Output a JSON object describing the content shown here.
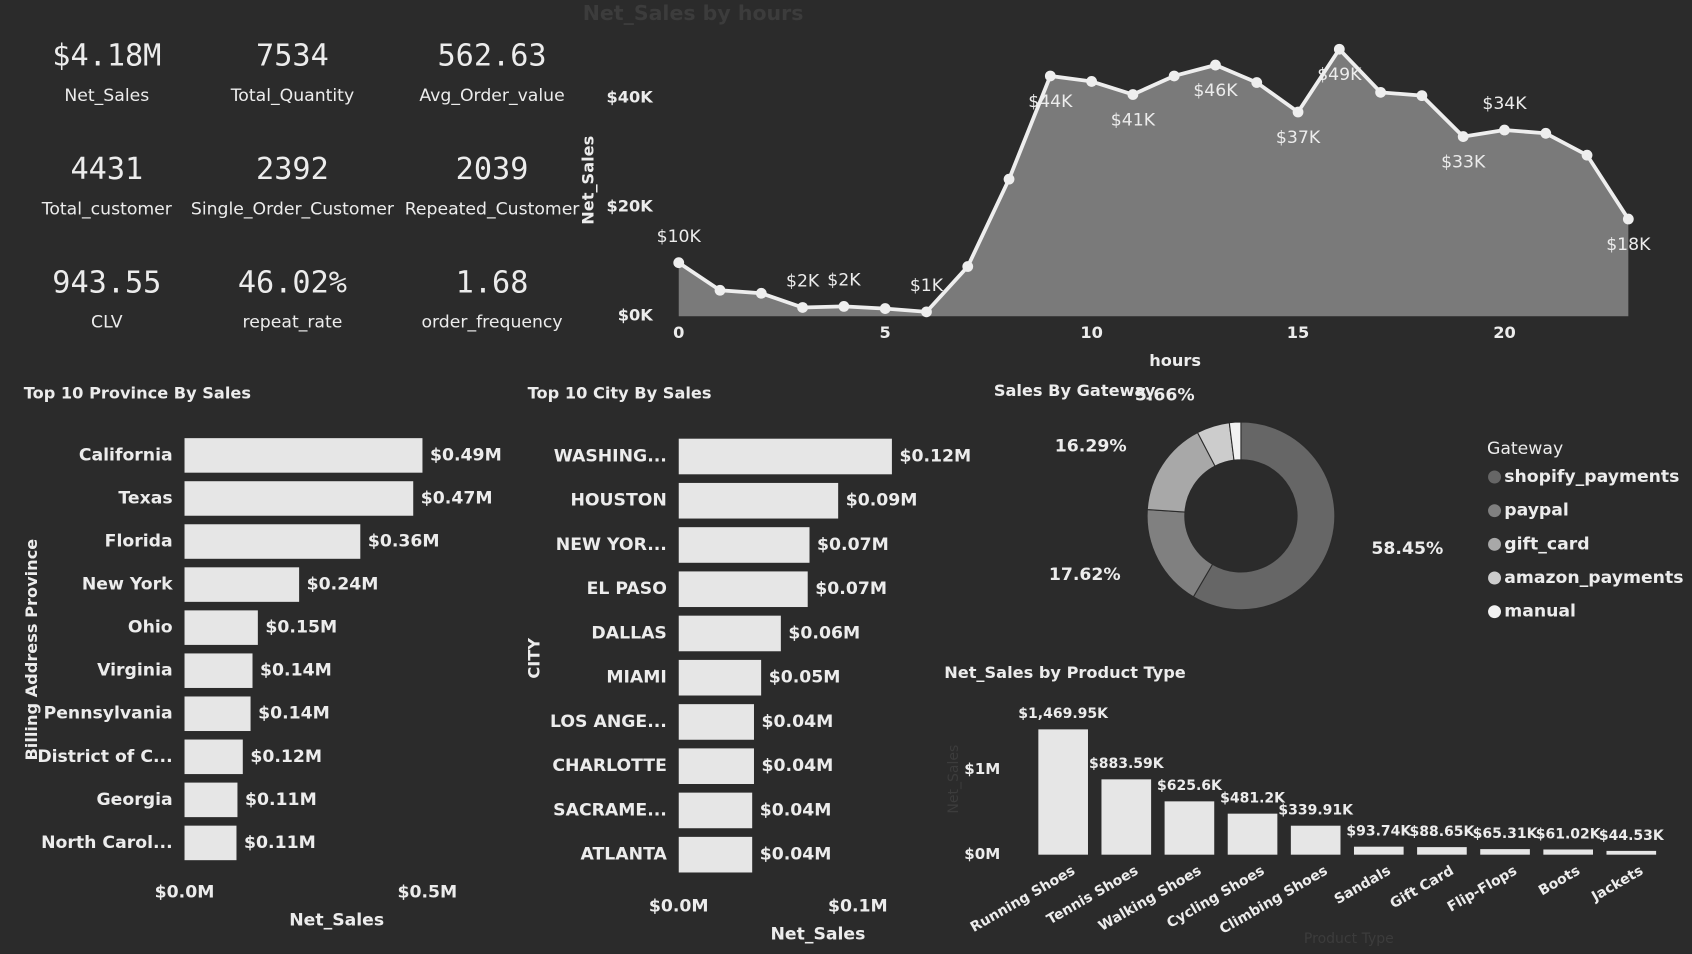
{
  "cards": [
    {
      "value": "$4.18M",
      "label": "Net_Sales"
    },
    {
      "value": "7534",
      "label": "Total_Quantity"
    },
    {
      "value": "562.63",
      "label": "Avg_Order_value"
    },
    {
      "value": "4431",
      "label": "Total_customer"
    },
    {
      "value": "2392",
      "label": "Single_Order_Customer"
    },
    {
      "value": "2039",
      "label": "Repeated_Customer"
    },
    {
      "value": "943.55",
      "label": "CLV"
    },
    {
      "value": "46.02%",
      "label": "repeat_rate"
    },
    {
      "value": "1.68",
      "label": "order_frequency"
    }
  ],
  "chart_data": [
    {
      "type": "line",
      "title": "Net_Sales by hours",
      "x_label": "hours",
      "y_label": "Net_Sales",
      "x": [
        0,
        1,
        2,
        3,
        4,
        5,
        6,
        7,
        8,
        9,
        10,
        11,
        12,
        13,
        14,
        15,
        16,
        17,
        18,
        19,
        20,
        21,
        22,
        23
      ],
      "values": [
        9800,
        4750,
        4200,
        1600,
        1800,
        1400,
        800,
        9100,
        25100,
        44000,
        43000,
        40600,
        44000,
        46000,
        42800,
        37400,
        48900,
        41000,
        40400,
        32900,
        34100,
        33500,
        29500,
        17800
      ],
      "value_labels": [
        "$10K",
        null,
        null,
        "$2K",
        "$2K",
        null,
        "$1K",
        null,
        null,
        "$44K",
        null,
        "$41K",
        null,
        "$46K",
        null,
        "$37K",
        "$49K",
        null,
        null,
        "$33K",
        "$34K",
        null,
        null,
        "$18K"
      ],
      "color": "#7a7a7a",
      "line_color": "#eeeeee",
      "xlim": [
        0,
        23
      ],
      "xticks": [
        0,
        5,
        10,
        15,
        20
      ],
      "ylim": [
        0,
        50000
      ],
      "yticks": [
        {
          "value": 0,
          "label": "$0K"
        },
        {
          "value": 20000,
          "label": "$20K"
        },
        {
          "value": 40000,
          "label": "$40K"
        }
      ]
    },
    {
      "type": "hbar",
      "title": "Top 10 Province By Sales",
      "x_label": "Net_Sales",
      "y_label": "Billing Address Province",
      "categories": [
        "California",
        "Texas",
        "Florida",
        "New York",
        "Ohio",
        "Virginia",
        "Pennsylvania",
        "District of C...",
        "Georgia",
        "North Carol..."
      ],
      "values": [
        490000,
        471000,
        362000,
        236000,
        151000,
        140000,
        136000,
        120000,
        109000,
        107000
      ],
      "value_labels": [
        "$0.49M",
        "$0.47M",
        "$0.36M",
        "$0.24M",
        "$0.15M",
        "$0.14M",
        "$0.14M",
        "$0.12M",
        "$0.11M",
        "$0.11M"
      ],
      "color": "#e6e6e6",
      "xlim": [
        0,
        500000
      ],
      "xticks": [
        {
          "value": 0,
          "label": "$0.0M"
        },
        {
          "value": 500000,
          "label": "$0.5M"
        }
      ]
    },
    {
      "type": "hbar",
      "title": "Top 10 City By Sales",
      "x_label": "Net_Sales",
      "y_label": "CITY",
      "categories": [
        "WASHING...",
        "HOUSTON",
        "NEW YOR...",
        "EL PASO",
        "DALLAS",
        "MIAMI",
        "LOS ANGE...",
        "CHARLOTTE",
        "SACRAME...",
        "ATLANTA"
      ],
      "values": [
        119000,
        89000,
        73000,
        72000,
        57000,
        46000,
        42000,
        42000,
        41000,
        41000
      ],
      "value_labels": [
        "$0.12M",
        "$0.09M",
        "$0.07M",
        "$0.07M",
        "$0.06M",
        "$0.05M",
        "$0.04M",
        "$0.04M",
        "$0.04M",
        "$0.04M"
      ],
      "color": "#e6e6e6",
      "xlim": [
        0,
        100000
      ],
      "xticks": [
        {
          "value": 0,
          "label": "$0.0M"
        },
        {
          "value": 100000,
          "label": "$0.1M"
        }
      ]
    },
    {
      "type": "donut",
      "title": "Sales By Gateway",
      "legend_title": "Gateway",
      "legend": "right",
      "categories": [
        "shopify_payments",
        "paypal",
        "gift_card",
        "amazon_payments",
        "manual"
      ],
      "values": [
        58.45,
        17.62,
        16.29,
        5.66,
        1.98
      ],
      "value_labels": [
        "58.45%",
        "17.62%",
        "16.29%",
        "5.66%",
        null
      ],
      "colors": [
        "#666666",
        "#808080",
        "#a8a8a8",
        "#cccccc",
        "#f2f2f2"
      ]
    },
    {
      "type": "bar",
      "title": "Net_Sales by Product Type",
      "x_label": "Product Type",
      "y_label": "Net_Sales",
      "categories": [
        "Running Shoes",
        "Tennis Shoes",
        "Walking Shoes",
        "Cycling Shoes",
        "Climbing Shoes",
        "Sandals",
        "Gift Card",
        "Flip-Flops",
        "Boots",
        "Jackets"
      ],
      "values": [
        1469950,
        883590,
        625600,
        481200,
        339910,
        93740,
        88650,
        65310,
        61020,
        44530
      ],
      "value_labels": [
        "$1,469.95K",
        "$883.59K",
        "$625.6K",
        "$481.2K",
        "$339.91K",
        "$93.74K",
        "$88.65K",
        "$65.31K",
        "$61.02K",
        "$44.53K"
      ],
      "color": "#e6e6e6",
      "ylim": [
        0,
        1600000
      ],
      "yticks": [
        {
          "value": 0,
          "label": "$0M"
        },
        {
          "value": 1000000,
          "label": "$1M"
        }
      ]
    }
  ]
}
